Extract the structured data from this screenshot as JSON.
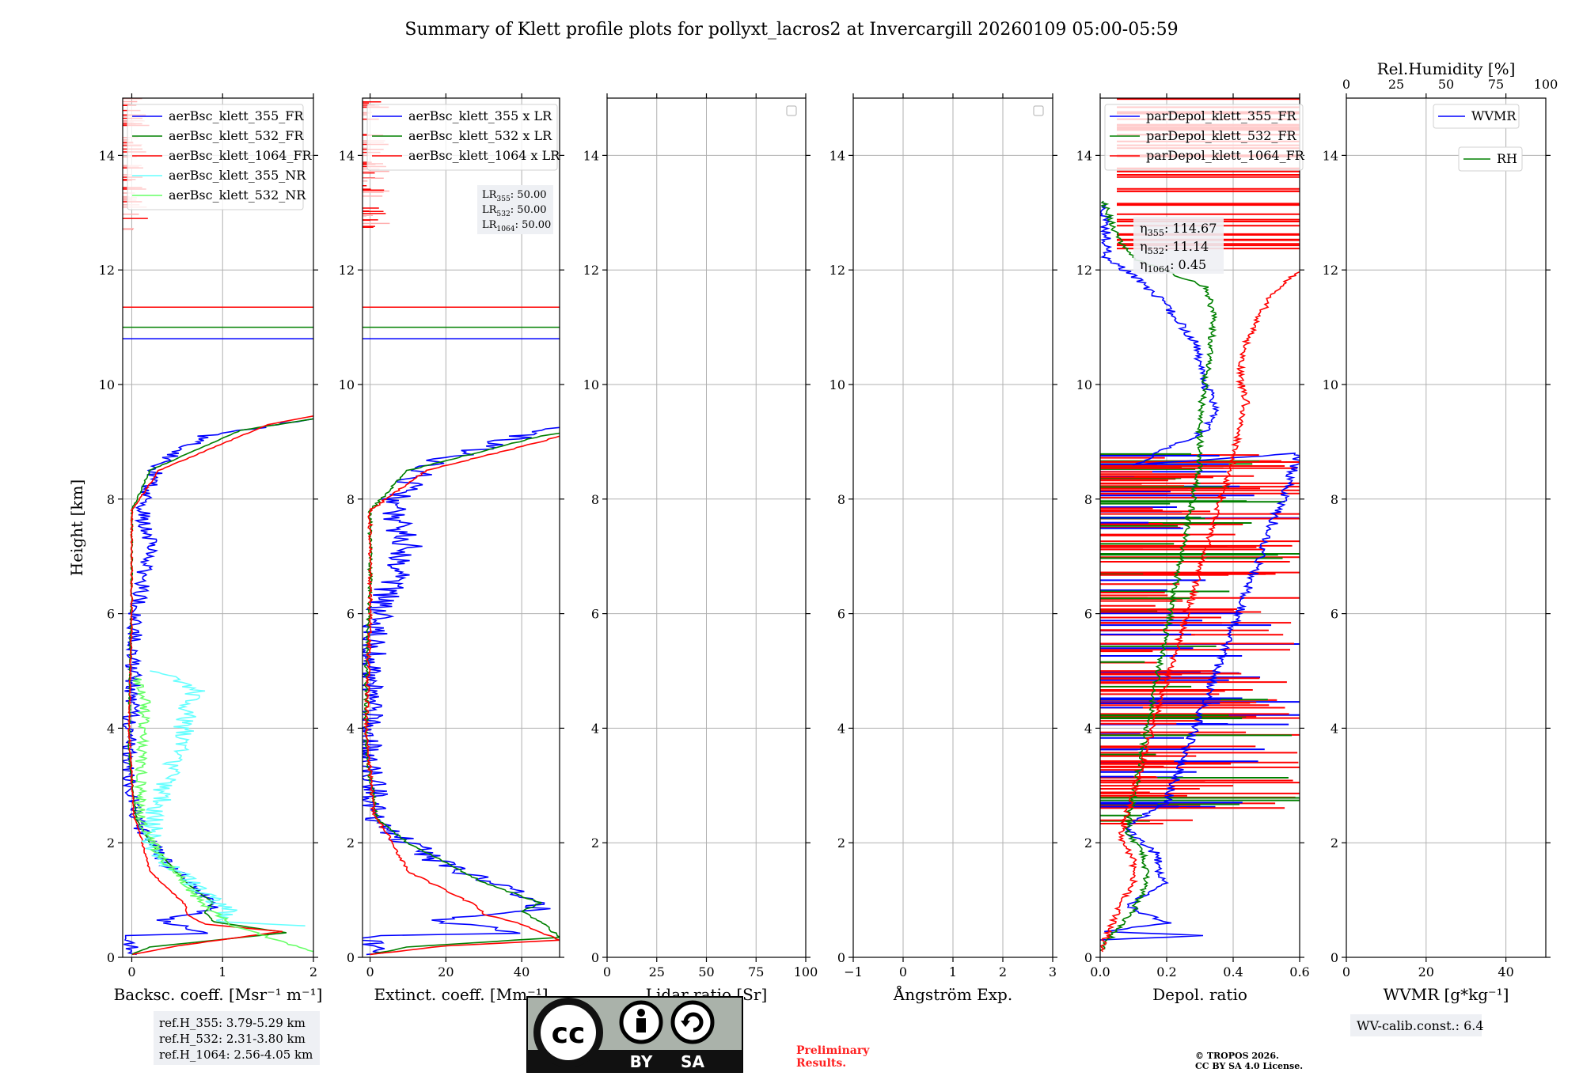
{
  "title": "Summary of Klett profile plots for pollyxt_lacros2 at Invercargill 20260109 05:00-05:59",
  "colors": {
    "c355": "#0000ff",
    "c532": "#008000",
    "c1064": "#ff0000",
    "c355nr": "#66ffff",
    "c532nr": "#66ff66",
    "grid": "#b0b0b0",
    "note_bg": "#eef0f4",
    "prelim": "#ff2020"
  },
  "chart_data": [
    {
      "id": "backscatter",
      "type": "line",
      "xlabel": "Backsc. coeff. [Msr⁻¹ m⁻¹]",
      "ylabel": "Height [km]",
      "xlim": [
        -0.1,
        2
      ],
      "ylim": [
        0,
        15
      ],
      "xticks": [
        0,
        1,
        2
      ],
      "yticks": [
        0,
        2,
        4,
        6,
        8,
        10,
        12,
        14
      ],
      "legend": [
        "aerBsc_klett_355_FR",
        "aerBsc_klett_532_FR",
        "aerBsc_klett_1064_FR",
        "aerBsc_klett_355_NR",
        "aerBsc_klett_532_NR"
      ],
      "legend_location": "top-left",
      "ref_lines": [
        {
          "color": "c1064",
          "y": 11.35
        },
        {
          "color": "c532",
          "y": 11.0
        },
        {
          "color": "c355",
          "y": 10.8
        }
      ],
      "series": [
        {
          "name": "aerBsc_klett_355_FR",
          "color": "c355",
          "noise": 0.09,
          "points": [
            [
              0,
              0.05
            ],
            [
              0,
              0.38
            ],
            [
              0.8,
              0.42
            ],
            [
              0.6,
              0.52
            ],
            [
              0.3,
              0.65
            ],
            [
              0.55,
              0.72
            ],
            [
              0.9,
              0.85
            ],
            [
              0.85,
              1.05
            ],
            [
              0.4,
              1.6
            ],
            [
              0.2,
              2.0
            ],
            [
              0.05,
              2.4
            ],
            [
              -0.05,
              3.5
            ],
            [
              0,
              4.5
            ],
            [
              0.05,
              6.0
            ],
            [
              0.2,
              7.2
            ],
            [
              0.1,
              7.9
            ],
            [
              0.3,
              8.6
            ],
            [
              0.8,
              9.1
            ],
            [
              2,
              9.4
            ]
          ]
        },
        {
          "name": "aerBsc_klett_532_FR",
          "color": "c532",
          "noise": 0.01,
          "points": [
            [
              0,
              0.05
            ],
            [
              0.2,
              0.18
            ],
            [
              1.7,
              0.43
            ],
            [
              0.9,
              0.62
            ],
            [
              0.8,
              0.8
            ],
            [
              0.9,
              0.95
            ],
            [
              0.6,
              1.3
            ],
            [
              0.2,
              2.0
            ],
            [
              0.05,
              2.4
            ],
            [
              -0.03,
              3.5
            ],
            [
              -0.02,
              5.0
            ],
            [
              0,
              6.5
            ],
            [
              0,
              7.8
            ],
            [
              0.2,
              8.5
            ],
            [
              1.2,
              9.2
            ],
            [
              2,
              9.4
            ]
          ]
        },
        {
          "name": "aerBsc_klett_1064_FR",
          "color": "c1064",
          "noise": 0.01,
          "points": [
            [
              0,
              0.05
            ],
            [
              0.5,
              0.2
            ],
            [
              1.65,
              0.45
            ],
            [
              0.8,
              0.58
            ],
            [
              0.6,
              0.75
            ],
            [
              0.6,
              0.9
            ],
            [
              0.2,
              1.5
            ],
            [
              0.1,
              2.1
            ],
            [
              0.02,
              2.5
            ],
            [
              -0.03,
              4.0
            ],
            [
              0,
              6.0
            ],
            [
              0,
              7.8
            ],
            [
              0.3,
              8.5
            ],
            [
              1.5,
              9.3
            ],
            [
              2,
              9.45
            ]
          ]
        },
        {
          "name": "aerBsc_klett_355_NR",
          "color": "c355nr",
          "noise": 0.12,
          "points": [
            [
              2,
              0.55
            ],
            [
              1.0,
              0.62
            ],
            [
              1.05,
              0.85
            ],
            [
              0.8,
              1.1
            ],
            [
              0.4,
              1.6
            ],
            [
              0.2,
              2.0
            ],
            [
              0.25,
              2.5
            ],
            [
              0.5,
              3.5
            ],
            [
              0.6,
              4.2
            ],
            [
              0.7,
              4.7
            ],
            [
              0.2,
              5.0
            ]
          ]
        },
        {
          "name": "aerBsc_klett_532_NR",
          "color": "c532nr",
          "noise": 0.06,
          "points": [
            [
              2,
              0.1
            ],
            [
              1.2,
              0.5
            ],
            [
              0.8,
              0.9
            ],
            [
              0.3,
              1.8
            ],
            [
              0.1,
              2.4
            ],
            [
              0.1,
              3.5
            ],
            [
              0.15,
              4.5
            ],
            [
              0.05,
              4.9
            ]
          ]
        }
      ]
    },
    {
      "id": "extinction",
      "type": "line",
      "xlabel": "Extinct. coeff. [Mm⁻¹]",
      "xlim": [
        -2,
        50
      ],
      "ylim": [
        0,
        15
      ],
      "xticks": [
        0,
        20,
        40
      ],
      "yticks": [
        0,
        2,
        4,
        6,
        8,
        10,
        12,
        14
      ],
      "legend": [
        "aerBsc_klett_355 x LR",
        "aerBsc_klett_532 x LR",
        "aerBsc_klett_1064 x LR"
      ],
      "legend_location": "top-left",
      "lidar_ratio_note": [
        "LR355: 50.00",
        "LR532: 50.00",
        "LR1064: 50.00"
      ],
      "ref_lines": [
        {
          "color": "c1064",
          "y": 11.35
        },
        {
          "color": "c532",
          "y": 11.0
        },
        {
          "color": "c355",
          "y": 10.8
        }
      ],
      "series": [
        {
          "name": "aerBsc_klett_355 x LR",
          "color": "c355",
          "noise": 4,
          "points": [
            [
              0,
              0.05
            ],
            [
              0,
              0.38
            ],
            [
              40,
              0.42
            ],
            [
              30,
              0.52
            ],
            [
              15,
              0.65
            ],
            [
              28,
              0.72
            ],
            [
              45,
              0.85
            ],
            [
              42,
              1.05
            ],
            [
              20,
              1.6
            ],
            [
              10,
              2.0
            ],
            [
              2,
              2.4
            ],
            [
              -1,
              3.5
            ],
            [
              0,
              4.5
            ],
            [
              2,
              6.0
            ],
            [
              10,
              7.2
            ],
            [
              5,
              7.9
            ],
            [
              15,
              8.6
            ],
            [
              40,
              9.1
            ],
            [
              50,
              9.25
            ]
          ]
        },
        {
          "name": "aerBsc_klett_532 x LR",
          "color": "c532",
          "noise": 0.5,
          "points": [
            [
              0,
              0.05
            ],
            [
              10,
              0.18
            ],
            [
              50,
              0.35
            ],
            [
              45,
              0.62
            ],
            [
              40,
              0.8
            ],
            [
              45,
              0.95
            ],
            [
              30,
              1.3
            ],
            [
              10,
              2.0
            ],
            [
              2,
              2.4
            ],
            [
              -1,
              3.5
            ],
            [
              -1,
              5.0
            ],
            [
              0,
              6.5
            ],
            [
              0,
              7.8
            ],
            [
              10,
              8.5
            ],
            [
              45,
              9.1
            ],
            [
              50,
              9.15
            ]
          ]
        },
        {
          "name": "aerBsc_klett_1064 x LR",
          "color": "c1064",
          "noise": 0.5,
          "points": [
            [
              0,
              0.05
            ],
            [
              20,
              0.2
            ],
            [
              50,
              0.3
            ],
            [
              40,
              0.58
            ],
            [
              30,
              0.75
            ],
            [
              28,
              0.9
            ],
            [
              10,
              1.5
            ],
            [
              5,
              2.1
            ],
            [
              1,
              2.5
            ],
            [
              -1,
              4.0
            ],
            [
              0,
              6.0
            ],
            [
              0,
              7.8
            ],
            [
              15,
              8.5
            ],
            [
              45,
              9.0
            ],
            [
              50,
              9.1
            ]
          ]
        }
      ]
    },
    {
      "id": "lidar_ratio",
      "type": "line",
      "xlabel": "Lidar ratio [Sr]",
      "xlim": [
        0,
        100
      ],
      "ylim": [
        0,
        15
      ],
      "xticks": [
        0,
        25,
        50,
        75,
        100
      ],
      "yticks": [
        0,
        2,
        4,
        6,
        8,
        10,
        12,
        14
      ],
      "legend": [],
      "series": []
    },
    {
      "id": "angstrom",
      "type": "line",
      "xlabel": "Ångström Exp.",
      "xlim": [
        -1,
        3
      ],
      "ylim": [
        0,
        15
      ],
      "xticks": [
        -1,
        0,
        1,
        2,
        3
      ],
      "yticks": [
        0,
        2,
        4,
        6,
        8,
        10,
        12,
        14
      ],
      "legend": [],
      "series": []
    },
    {
      "id": "depol",
      "type": "line",
      "xlabel": "Depol. ratio",
      "xlim": [
        0,
        0.6
      ],
      "ylim": [
        0,
        15
      ],
      "xticks": [
        0.0,
        0.2,
        0.4,
        0.6
      ],
      "yticks": [
        0,
        2,
        4,
        6,
        8,
        10,
        12,
        14
      ],
      "legend": [
        "parDepol_klett_355_FR",
        "parDepol_klett_532_FR",
        "parDepol_klett_1064_FR"
      ],
      "legend_location": "top-left",
      "eta_note": [
        "η355: 114.67",
        "η532: 11.14",
        "η1064: 0.45"
      ],
      "series": [
        {
          "name": "parDepol_klett_355_FR",
          "color": "c355",
          "noise": 0.015,
          "points": [
            [
              0,
              0.3
            ],
            [
              0.3,
              0.38
            ],
            [
              0.02,
              0.45
            ],
            [
              0.2,
              0.6
            ],
            [
              0.08,
              0.9
            ],
            [
              0.19,
              1.3
            ],
            [
              0.17,
              1.8
            ],
            [
              0.1,
              2.1
            ],
            [
              0.08,
              2.3
            ],
            [
              0.2,
              2.7
            ],
            [
              0.6,
              8.8
            ],
            [
              0.1,
              8.6
            ],
            [
              0.32,
              9.2
            ],
            [
              0.35,
              9.6
            ],
            [
              0.3,
              10.2
            ],
            [
              0.3,
              10.6
            ],
            [
              0.25,
              11.0
            ],
            [
              0.18,
              11.5
            ],
            [
              0.1,
              11.9
            ],
            [
              0.02,
              12.2
            ],
            [
              0.02,
              12.6
            ],
            [
              0.01,
              13.2
            ]
          ]
        },
        {
          "name": "parDepol_klett_532_FR",
          "color": "c532",
          "noise": 0.01,
          "points": [
            [
              0,
              0.1
            ],
            [
              0.05,
              0.5
            ],
            [
              0.1,
              0.8
            ],
            [
              0.14,
              1.3
            ],
            [
              0.13,
              1.8
            ],
            [
              0.08,
              2.2
            ],
            [
              0.3,
              8.6
            ],
            [
              0.3,
              9.5
            ],
            [
              0.33,
              10.5
            ],
            [
              0.34,
              11.2
            ],
            [
              0.32,
              11.7
            ],
            [
              0.1,
              12.2
            ],
            [
              0.05,
              12.6
            ],
            [
              0.01,
              13.2
            ]
          ]
        },
        {
          "name": "parDepol_klett_1064_FR",
          "color": "c1064",
          "noise": 0.01,
          "points": [
            [
              0,
              0.1
            ],
            [
              0.03,
              0.5
            ],
            [
              0.06,
              0.9
            ],
            [
              0.1,
              1.3
            ],
            [
              0.1,
              1.7
            ],
            [
              0.06,
              2.1
            ],
            [
              0.4,
              8.7
            ],
            [
              0.42,
              9.3
            ],
            [
              0.44,
              9.7
            ],
            [
              0.42,
              10.1
            ],
            [
              0.43,
              10.6
            ],
            [
              0.47,
              11.1
            ],
            [
              0.52,
              11.6
            ],
            [
              0.6,
              12.0
            ]
          ]
        }
      ],
      "spikes": {
        "count": 220,
        "ymin": 2.3,
        "ymax": 8.8,
        "upper_ymin": 12.3,
        "upper_ymax": 15
      }
    },
    {
      "id": "wv",
      "type": "line",
      "xlabel": "WVMR [g*kg⁻¹]",
      "top_xlabel": "Rel.Humidity [%]",
      "xlim": [
        0,
        50
      ],
      "top_xlim": [
        0,
        100
      ],
      "ylim": [
        0,
        15
      ],
      "xticks": [
        0,
        20,
        40
      ],
      "top_xticks": [
        0,
        25,
        50,
        75,
        100
      ],
      "yticks": [
        0,
        2,
        4,
        6,
        8,
        10,
        12,
        14
      ],
      "legend": [
        "WVMR",
        "RH"
      ],
      "legend_location": "top-right",
      "series": []
    }
  ],
  "ref_heights": [
    "ref.H_355: 3.79-5.29 km",
    "ref.H_532: 2.31-3.80 km",
    "ref.H_1064: 2.56-4.05 km"
  ],
  "license_badge": {
    "by": "BY",
    "sa": "SA",
    "cc": "cc"
  },
  "preliminary": [
    "Preliminary",
    "Results."
  ],
  "copyright": [
    "© TROPOS 2026.",
    "CC BY SA 4.0 License."
  ],
  "wv_calib": "WV-calib.const.: 6.4"
}
